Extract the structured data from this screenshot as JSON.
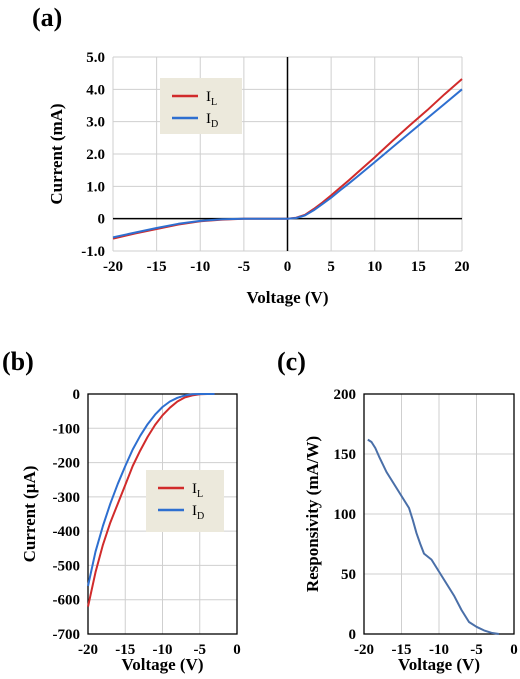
{
  "chart_data": [
    {
      "panel": "(a)",
      "type": "line",
      "xlabel": "Voltage (V)",
      "ylabel": "Current (mA)",
      "xlim": [
        -20,
        20
      ],
      "ylim": [
        -1.0,
        5.0
      ],
      "xticks": [
        "-20",
        "-15",
        "-10",
        "-5",
        "0",
        "5",
        "10",
        "15",
        "20"
      ],
      "yticks": [
        "-1.0",
        "0",
        "1.0",
        "2.0",
        "3.0",
        "4.0",
        "5.0"
      ],
      "grid": true,
      "legend": "top-left",
      "series": [
        {
          "name": "IL",
          "label_main": "I",
          "label_sub": "L",
          "color": "#d12b2b",
          "x": [
            -20,
            -17.5,
            -15,
            -12.5,
            -10,
            -7.5,
            -5,
            -2.5,
            0,
            1,
            2,
            3,
            4,
            5,
            6,
            7,
            8,
            10,
            12,
            14,
            16,
            18,
            20
          ],
          "y": [
            -0.62,
            -0.46,
            -0.32,
            -0.18,
            -0.08,
            -0.03,
            0,
            0,
            0,
            0.03,
            0.12,
            0.3,
            0.5,
            0.72,
            0.95,
            1.18,
            1.42,
            1.9,
            2.4,
            2.88,
            3.35,
            3.85,
            4.32
          ]
        },
        {
          "name": "ID",
          "label_main": "I",
          "label_sub": "D",
          "color": "#2e6fd0",
          "x": [
            -20,
            -17.5,
            -15,
            -12.5,
            -10,
            -7.5,
            -5,
            -2.5,
            0,
            1,
            2,
            3,
            4,
            5,
            6,
            7,
            8,
            10,
            12,
            14,
            16,
            18,
            20
          ],
          "y": [
            -0.58,
            -0.43,
            -0.29,
            -0.16,
            -0.07,
            -0.02,
            0,
            0,
            0,
            0.02,
            0.1,
            0.26,
            0.45,
            0.65,
            0.87,
            1.08,
            1.3,
            1.75,
            2.2,
            2.65,
            3.1,
            3.55,
            4.0
          ]
        }
      ]
    },
    {
      "panel": "(b)",
      "type": "line",
      "xlabel": "Voltage (V)",
      "ylabel": "Current (µA)",
      "xlim": [
        -20,
        0
      ],
      "ylim": [
        -700,
        0
      ],
      "xticks": [
        "-20",
        "-15",
        "-10",
        "-5",
        "0"
      ],
      "yticks": [
        "-700",
        "-600",
        "-500",
        "-400",
        "-300",
        "-200",
        "-100",
        "0"
      ],
      "grid": true,
      "legend": "right",
      "series": [
        {
          "name": "IL",
          "label_main": "I",
          "label_sub": "L",
          "color": "#d12b2b",
          "x": [
            -20,
            -19,
            -18,
            -17,
            -16,
            -15,
            -14,
            -13,
            -12,
            -11,
            -10,
            -9,
            -8,
            -7,
            -6,
            -5,
            -4,
            -3
          ],
          "y": [
            -620,
            -520,
            -440,
            -375,
            -320,
            -265,
            -210,
            -165,
            -125,
            -90,
            -62,
            -40,
            -22,
            -10,
            -4,
            -1,
            0,
            0
          ]
        },
        {
          "name": "ID",
          "label_main": "I",
          "label_sub": "D",
          "color": "#2e6fd0",
          "x": [
            -20,
            -19,
            -18,
            -17,
            -16,
            -15,
            -14,
            -13,
            -12,
            -11,
            -10,
            -9,
            -8,
            -7,
            -6,
            -5,
            -4,
            -3
          ],
          "y": [
            -560,
            -460,
            -385,
            -320,
            -262,
            -210,
            -162,
            -122,
            -88,
            -60,
            -38,
            -22,
            -11,
            -4,
            -1,
            0,
            0,
            0
          ]
        }
      ]
    },
    {
      "panel": "(c)",
      "type": "line",
      "xlabel": "Voltage (V)",
      "ylabel": "Responsivity (mA/W)",
      "xlim": [
        -20,
        0
      ],
      "ylim": [
        0,
        200
      ],
      "xticks": [
        "-20",
        "-15",
        "-10",
        "-5",
        "0"
      ],
      "yticks": [
        "0",
        "50",
        "100",
        "150",
        "200"
      ],
      "grid": true,
      "series": [
        {
          "color": "#4a6fa8",
          "x": [
            -19.5,
            -19,
            -18.5,
            -18,
            -17,
            -16,
            -15,
            -14,
            -13.5,
            -13,
            -12.5,
            -12,
            -11,
            -10,
            -9,
            -8,
            -7,
            -6,
            -5,
            -4,
            -3,
            -2
          ],
          "y": [
            162,
            160,
            155,
            148,
            135,
            125,
            115,
            105,
            95,
            84,
            75,
            67,
            62,
            52,
            42,
            32,
            20,
            10,
            6,
            3,
            1,
            0
          ]
        }
      ]
    }
  ]
}
